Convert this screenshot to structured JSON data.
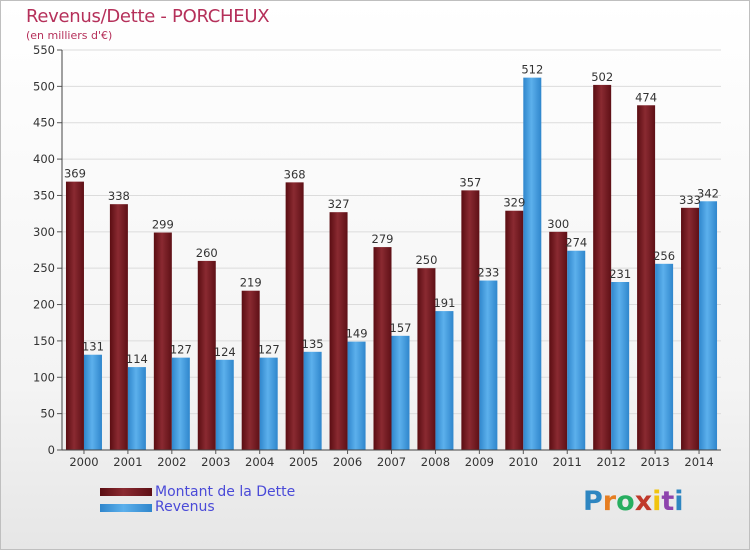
{
  "chart_data": {
    "type": "bar",
    "title": "Revenus/Dette - PORCHEUX",
    "subtitle": "(en milliers d'€)",
    "categories": [
      "2000",
      "2001",
      "2002",
      "2003",
      "2004",
      "2005",
      "2006",
      "2007",
      "2008",
      "2009",
      "2010",
      "2011",
      "2012",
      "2013",
      "2014"
    ],
    "series": [
      {
        "name": "Montant de la Dette",
        "color": "#7a1c22",
        "values": [
          369,
          338,
          299,
          260,
          219,
          368,
          327,
          279,
          250,
          357,
          329,
          300,
          502,
          474,
          333
        ]
      },
      {
        "name": "Revenus",
        "color": "#3c99dc",
        "values": [
          131,
          114,
          127,
          124,
          127,
          135,
          149,
          157,
          191,
          233,
          512,
          274,
          231,
          256,
          342
        ]
      }
    ],
    "yticks": [
      "0",
      "50",
      "100",
      "150",
      "200",
      "250",
      "300",
      "350",
      "400",
      "450",
      "500",
      "550"
    ],
    "ylim": [
      0,
      550
    ],
    "grid": true,
    "legend_position": "bottom-left"
  },
  "logo": {
    "letters": [
      "P",
      "r",
      "o",
      "x",
      "i",
      "t",
      "i"
    ]
  }
}
